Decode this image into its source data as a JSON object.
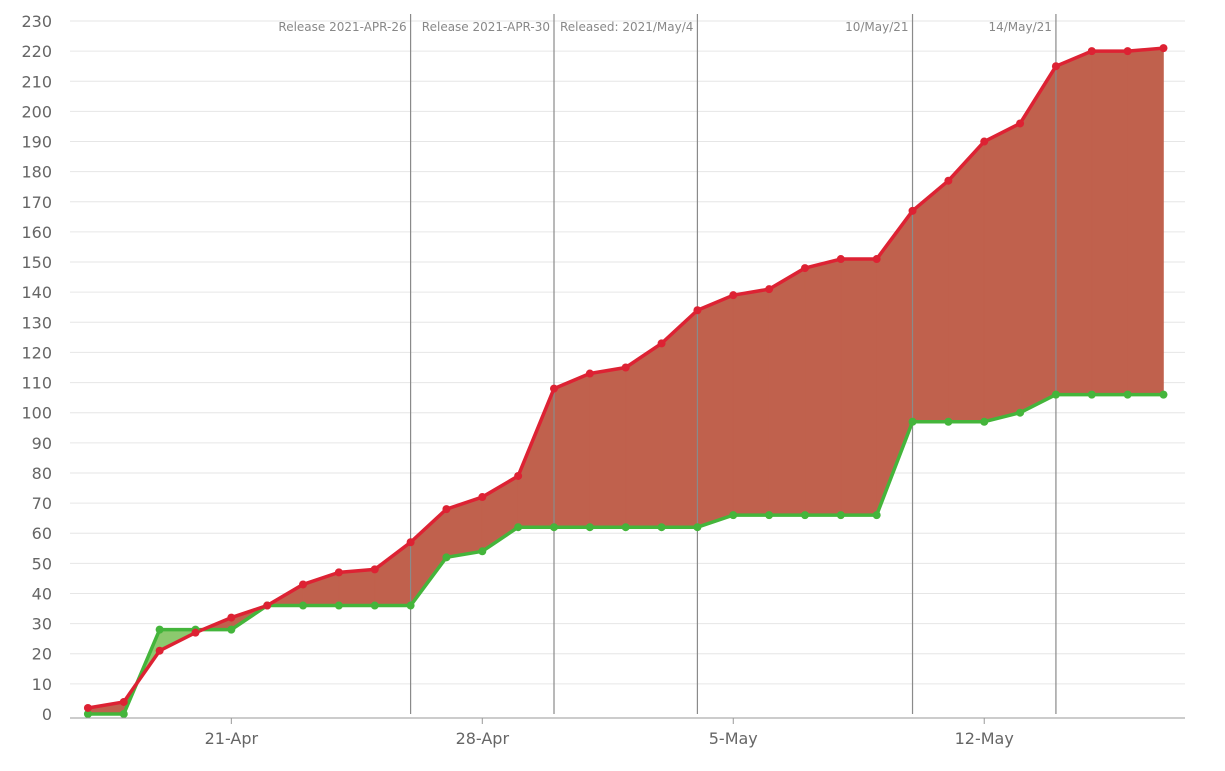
{
  "chart_data": {
    "type": "area",
    "ylim": [
      0,
      230
    ],
    "yticks": [
      0,
      10,
      20,
      30,
      40,
      50,
      60,
      70,
      80,
      90,
      100,
      110,
      120,
      130,
      140,
      150,
      160,
      170,
      180,
      190,
      200,
      210,
      220,
      230
    ],
    "xticks": [
      {
        "label": "21-Apr",
        "day": 4
      },
      {
        "label": "28-Apr",
        "day": 11
      },
      {
        "label": "5-May",
        "day": 18
      },
      {
        "label": "12-May",
        "day": 25
      }
    ],
    "x_range_days": [
      -0.5,
      30.6
    ],
    "releases": [
      {
        "label": "Release 2021-APR-26",
        "day": 9
      },
      {
        "label": "Release 2021-APR-30",
        "day": 13
      },
      {
        "label": "Released: 2021/May/4",
        "day": 17
      },
      {
        "label": "10/May/21",
        "day": 23
      },
      {
        "label": "14/May/21",
        "day": 27
      }
    ],
    "series": [
      {
        "color": "#dd2233",
        "fill": "#c0614d",
        "values": [
          2,
          4,
          21,
          27,
          32,
          36,
          43,
          47,
          48,
          57,
          68,
          72,
          79,
          108,
          113,
          115,
          123,
          134,
          139,
          141,
          148,
          151,
          151,
          167,
          177,
          190,
          196,
          215,
          220,
          220,
          221
        ]
      },
      {
        "color": "#44b53b",
        "fill": "#8cc96e",
        "values": [
          0,
          0,
          28,
          28,
          28,
          36,
          36,
          36,
          36,
          36,
          52,
          54,
          62,
          62,
          62,
          62,
          62,
          62,
          66,
          66,
          66,
          66,
          66,
          97,
          97,
          97,
          100,
          106,
          106,
          106,
          106
        ]
      }
    ]
  }
}
